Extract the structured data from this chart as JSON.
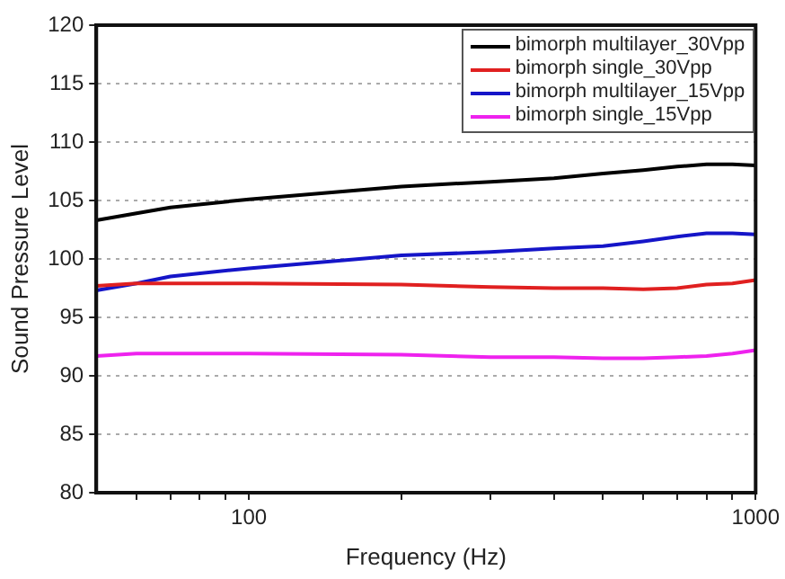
{
  "chart_data": {
    "type": "line",
    "xlabel": "Frequency (Hz)",
    "ylabel": "Sound Pressure Level",
    "log": "x",
    "xlim": [
      50,
      1000
    ],
    "xticks": [
      {
        "value": 60,
        "label": null
      },
      {
        "value": 70,
        "label": null
      },
      {
        "value": 80,
        "label": null
      },
      {
        "value": 90,
        "label": null
      },
      100,
      {
        "value": 200,
        "label": null
      },
      {
        "value": 300,
        "label": null
      },
      {
        "value": 400,
        "label": null
      },
      {
        "value": 500,
        "label": null
      },
      {
        "value": 600,
        "label": null
      },
      {
        "value": 700,
        "label": null
      },
      {
        "value": 800,
        "label": null
      },
      {
        "value": 900,
        "label": null
      },
      1000
    ],
    "ylim": [
      80,
      120
    ],
    "yticks": [
      80,
      85,
      90,
      95,
      100,
      105,
      110,
      115,
      120
    ],
    "grid": "y",
    "legend": "top right",
    "marker": "none",
    "line_style": "solid",
    "x": [
      50,
      60,
      70,
      100,
      200,
      300,
      400,
      500,
      600,
      700,
      800,
      900,
      1000
    ],
    "series": [
      {
        "name": "bimorph multilayer_30Vpp",
        "color": "#000000",
        "values": [
          103.3,
          103.9,
          104.4,
          105.1,
          106.2,
          106.6,
          106.9,
          107.3,
          107.6,
          107.9,
          108.1,
          108.1,
          108.0
        ]
      },
      {
        "name": "bimorph single_30Vpp",
        "color": "#e02020",
        "values": [
          97.7,
          97.9,
          97.9,
          97.9,
          97.8,
          97.6,
          97.5,
          97.5,
          97.4,
          97.5,
          97.8,
          97.9,
          98.2
        ]
      },
      {
        "name": "bimorph multilayer_15Vpp",
        "color": "#1515c8",
        "values": [
          97.3,
          97.9,
          98.5,
          99.2,
          100.3,
          100.6,
          100.9,
          101.1,
          101.5,
          101.9,
          102.2,
          102.2,
          102.1
        ]
      },
      {
        "name": "bimorph single_15Vpp",
        "color": "#ee22ee",
        "values": [
          91.7,
          91.9,
          91.9,
          91.9,
          91.8,
          91.6,
          91.6,
          91.5,
          91.5,
          91.6,
          91.7,
          91.9,
          92.2
        ]
      }
    ]
  }
}
